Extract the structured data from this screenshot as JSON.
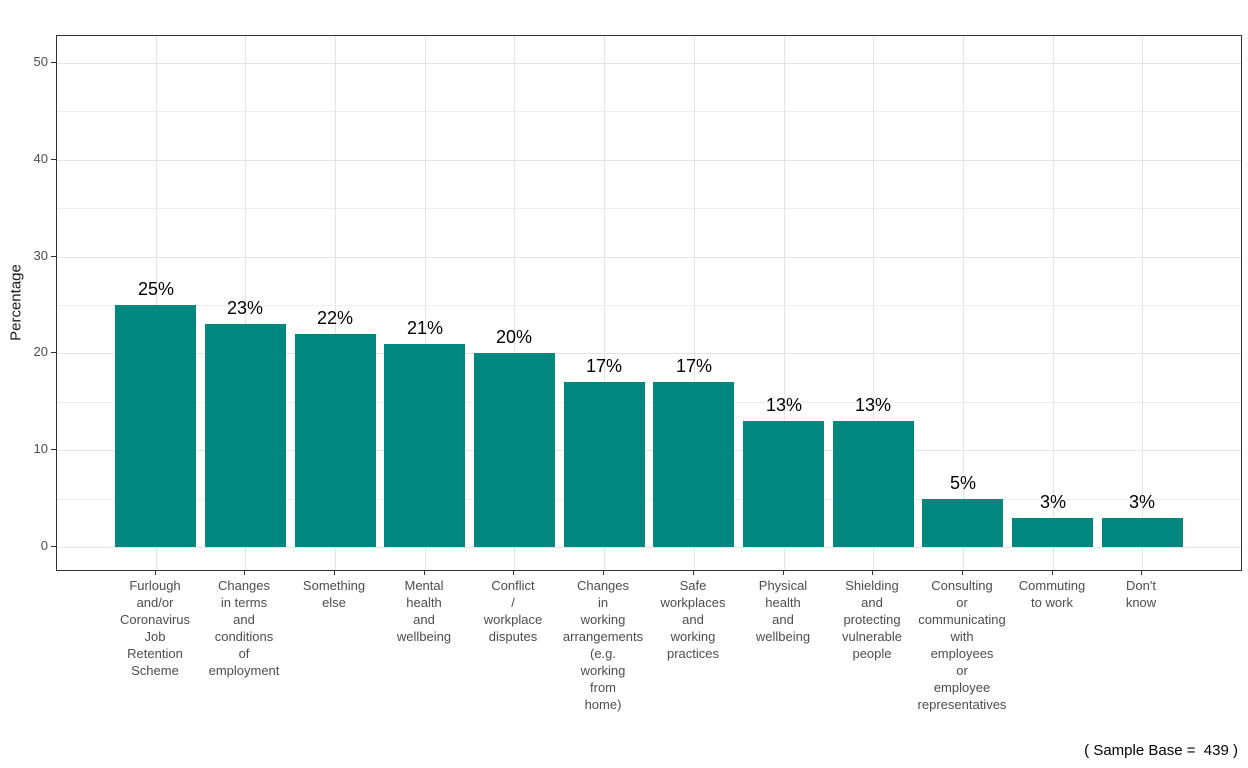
{
  "chart_data": {
    "type": "bar",
    "title": "",
    "xlabel": "",
    "ylabel": "Percentage",
    "ylim": [
      0,
      52
    ],
    "grid": true,
    "legend_position": "none",
    "categories": [
      "Furlough and/or Coronavirus Job Retention Scheme",
      "Changes in terms and conditions of employment",
      "Something else",
      "Mental health and wellbeing",
      "Conflict / workplace disputes",
      "Changes in working arrangements (e.g. working from home)",
      "Safe workplaces and working practices",
      "Physical health and wellbeing",
      "Shielding and protecting vulnerable people",
      "Consulting or communicating with employees or employee representatives",
      "Commuting to work",
      "Don't know"
    ],
    "category_lines": [
      [
        "Furlough",
        "and/or",
        "Coronavirus",
        "Job",
        "Retention",
        "Scheme"
      ],
      [
        "Changes",
        "in terms",
        "and",
        "conditions",
        "of",
        "employment"
      ],
      [
        "Something",
        "else"
      ],
      [
        "Mental",
        "health",
        "and",
        "wellbeing"
      ],
      [
        "Conflict",
        "/",
        "workplace",
        "disputes"
      ],
      [
        "Changes",
        "in",
        "working",
        "arrangements",
        "(e.g.",
        "working",
        "from",
        "home)"
      ],
      [
        "Safe",
        "workplaces",
        "and",
        "working",
        "practices"
      ],
      [
        "Physical",
        "health",
        "and",
        "wellbeing"
      ],
      [
        "Shielding",
        "and",
        "protecting",
        "vulnerable",
        "people"
      ],
      [
        "Consulting",
        "or",
        "communicating",
        "with",
        "employees",
        "or",
        "employee",
        "representatives"
      ],
      [
        "Commuting",
        "to work"
      ],
      [
        "Don't",
        "know"
      ]
    ],
    "values": [
      25,
      23,
      22,
      21,
      20,
      17,
      17,
      13,
      13,
      5,
      3,
      3
    ],
    "value_labels": [
      "25%",
      "23%",
      "22%",
      "21%",
      "20%",
      "17%",
      "17%",
      "13%",
      "13%",
      "5%",
      "3%",
      "3%"
    ],
    "y_axis": {
      "major_ticks": [
        0,
        10,
        20,
        30,
        40,
        50
      ],
      "minor_ticks": [
        5,
        15,
        25,
        35,
        45
      ]
    },
    "colors": {
      "bar": "#008880",
      "panel_border": "#333333",
      "grid_major": "#e4e4e4",
      "grid_minor": "#efefef",
      "tick_label": "#4d4d4d",
      "axis_title": "#1a1a1a",
      "value_label": "#000000"
    }
  },
  "footer": {
    "sample_base_note": "( Sample Base =  439 )"
  }
}
